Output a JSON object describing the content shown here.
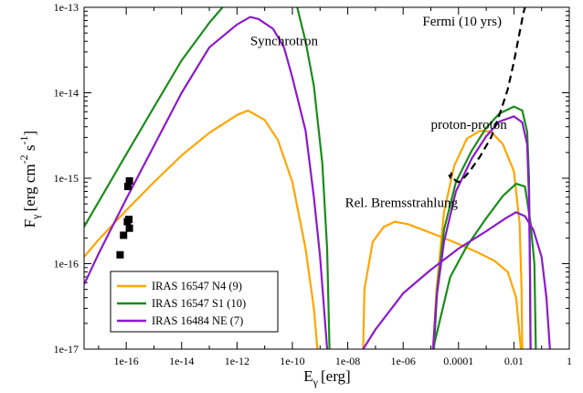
{
  "chart_data": {
    "type": "line",
    "xlabel": "E",
    "xlabel_sub": "γ",
    "xlabel_unit": "[erg]",
    "ylabel": "F",
    "ylabel_sub": "γ",
    "ylabel_unit": "[erg cm",
    "ylabel_exp1": "-2",
    "ylabel_mid": " s",
    "ylabel_exp2": "-1",
    "ylabel_close": "]",
    "x_scale": "log",
    "y_scale": "log",
    "xlim": [
      3e-18,
      1
    ],
    "ylim": [
      1e-17,
      1e-13
    ],
    "x_ticks": [
      {
        "value": 1e-16,
        "label": "1e-16"
      },
      {
        "value": 1e-14,
        "label": "1e-14"
      },
      {
        "value": 1e-12,
        "label": "1e-12"
      },
      {
        "value": 1e-10,
        "label": "1e-10"
      },
      {
        "value": 1e-08,
        "label": "1e-08"
      },
      {
        "value": 1e-06,
        "label": "1e-06"
      },
      {
        "value": 0.0001,
        "label": "0.0001"
      },
      {
        "value": 0.01,
        "label": "0.01"
      },
      {
        "value": 1,
        "label": "1"
      }
    ],
    "y_ticks": [
      {
        "value": 1e-17,
        "label": "1e-17"
      },
      {
        "value": 1e-16,
        "label": "1e-16"
      },
      {
        "value": 1e-15,
        "label": "1e-15"
      },
      {
        "value": 1e-14,
        "label": "1e-14"
      },
      {
        "value": 1e-13,
        "label": "1e-13"
      }
    ],
    "grid": false,
    "legend_position": "bottom-left",
    "colors": {
      "orange": "#FFA500",
      "green": "#1a8c1a",
      "purple": "#8c1acc",
      "black": "#000000"
    },
    "annotations": [
      {
        "text": "Synchrotron",
        "x": 3e-12,
        "y": 3.6e-14
      },
      {
        "text": "proton-proton",
        "x": 1e-05,
        "y": 3.8e-15
      },
      {
        "text": "Rel. Bremsstrahlung",
        "x": 8e-09,
        "y": 4.6e-16
      },
      {
        "text": "Fermi (10 yrs)",
        "x": 5e-06,
        "y": 6.1e-14
      }
    ],
    "series": [
      {
        "name": "IRAS 16547 N4 (9)",
        "color": "#FFA500",
        "segments": [
          [
            [
              3e-18,
              1.2e-16
            ],
            [
              1e-17,
              1.9e-16
            ],
            [
              1e-16,
              4.2e-16
            ],
            [
              1e-15,
              9e-16
            ],
            [
              1e-14,
              1.85e-15
            ],
            [
              1e-13,
              3.4e-15
            ],
            [
              1e-12,
              5.5e-15
            ],
            [
              2.5e-12,
              6.2e-15
            ],
            [
              1e-11,
              4.8e-15
            ],
            [
              3e-11,
              2.8e-15
            ],
            [
              1e-10,
              9e-16
            ],
            [
              3e-10,
              1.5e-16
            ],
            [
              6e-10,
              3e-17
            ],
            [
              8e-10,
              1e-17
            ]
          ],
          [
            [
              3.6e-08,
              1e-17
            ],
            [
              4e-08,
              5e-17
            ],
            [
              8e-08,
              1.8e-16
            ],
            [
              2e-07,
              2.7e-16
            ],
            [
              5e-07,
              3.1e-16
            ],
            [
              1.5e-06,
              2.9e-16
            ],
            [
              5e-06,
              2.5e-16
            ],
            [
              2e-05,
              2.1e-16
            ],
            [
              0.0001,
              1.7e-16
            ],
            [
              0.0005,
              1.35e-16
            ],
            [
              0.002,
              1.08e-16
            ],
            [
              0.006,
              8e-17
            ],
            [
              0.012,
              4e-17
            ],
            [
              0.018,
              1e-17
            ]
          ],
          [
            [
              1.2e-05,
              1e-17
            ],
            [
              1.6e-05,
              5e-17
            ],
            [
              3e-05,
              4e-16
            ],
            [
              7e-05,
              1.4e-15
            ],
            [
              0.0002,
              2.9e-15
            ],
            [
              0.0006,
              3.6e-15
            ],
            [
              0.0015,
              3.5e-15
            ],
            [
              0.004,
              2.5e-15
            ],
            [
              0.01,
              1.2e-15
            ],
            [
              0.016,
              3e-16
            ],
            [
              0.019,
              5e-17
            ],
            [
              0.02,
              1e-17
            ]
          ]
        ]
      },
      {
        "name": "IRAS 16547 S1 (10)",
        "color": "#1a8c1a",
        "segments": [
          [
            [
              3e-18,
              2.7e-16
            ],
            [
              1e-16,
              1.9e-15
            ],
            [
              1e-15,
              6.8e-15
            ],
            [
              1e-14,
              2.4e-14
            ],
            [
              1e-13,
              6.6e-14
            ],
            [
              3e-13,
              1e-13
            ]
          ],
          [
            [
              1.5e-10,
              1e-13
            ],
            [
              3e-10,
              4e-14
            ],
            [
              6e-10,
              1.2e-14
            ],
            [
              1.2e-09,
              1.5e-15
            ],
            [
              1.8e-09,
              1.5e-16
            ],
            [
              2.2e-09,
              1e-17
            ]
          ],
          [
            [
              1.2e-05,
              1e-17
            ],
            [
              5e-05,
              7e-17
            ],
            [
              0.0002,
              1.6e-16
            ],
            [
              0.001,
              3.4e-16
            ],
            [
              0.004,
              6.2e-16
            ],
            [
              0.012,
              8.6e-16
            ],
            [
              0.025,
              8e-16
            ],
            [
              0.04,
              3e-16
            ],
            [
              0.055,
              1e-16
            ],
            [
              0.062,
              1e-17
            ]
          ],
          [
            [
              1.3e-05,
              1e-17
            ],
            [
              1.7e-05,
              5e-17
            ],
            [
              3e-05,
              2.5e-16
            ],
            [
              8e-05,
              9e-16
            ],
            [
              0.0003,
              2.1e-15
            ],
            [
              0.001,
              3.9e-15
            ],
            [
              0.003,
              5.7e-15
            ],
            [
              0.01,
              6.9e-15
            ],
            [
              0.02,
              6.2e-15
            ],
            [
              0.03,
              3.5e-15
            ],
            [
              0.035,
              1e-15
            ],
            [
              0.038,
              1e-16
            ],
            [
              0.04,
              1e-17
            ]
          ]
        ]
      },
      {
        "name": "IRAS 16484 NE (7)",
        "color": "#8c1acc",
        "segments": [
          [
            [
              3e-18,
              5.7e-17
            ],
            [
              1e-17,
              1.3e-16
            ],
            [
              1e-16,
              5.7e-16
            ],
            [
              1e-15,
              2.4e-15
            ],
            [
              1e-14,
              1e-14
            ],
            [
              1e-13,
              3.4e-14
            ],
            [
              1e-12,
              6.3e-14
            ],
            [
              3e-12,
              7.7e-14
            ],
            [
              6e-12,
              7.3e-14
            ],
            [
              2e-11,
              5.6e-14
            ],
            [
              5e-11,
              3.4e-14
            ],
            [
              1e-10,
              1.5e-14
            ],
            [
              3e-10,
              3.6e-15
            ],
            [
              6e-10,
              6e-16
            ],
            [
              1e-09,
              1.2e-16
            ],
            [
              1.8e-09,
              1e-17
            ]
          ],
          [
            [
              3.6e-08,
              1e-17
            ],
            [
              1e-07,
              1.7e-17
            ],
            [
              1e-06,
              4.5e-17
            ],
            [
              1e-05,
              8.5e-17
            ],
            [
              0.0001,
              1.5e-16
            ],
            [
              0.001,
              2.4e-16
            ],
            [
              0.005,
              3.4e-16
            ],
            [
              0.012,
              4e-16
            ],
            [
              0.025,
              3.6e-16
            ],
            [
              0.05,
              2.5e-16
            ],
            [
              0.1,
              1.2e-16
            ],
            [
              0.15,
              4e-17
            ],
            [
              0.2,
              1e-17
            ]
          ],
          [
            [
              1.2e-05,
              1e-17
            ],
            [
              1.6e-05,
              4e-17
            ],
            [
              3e-05,
              1.8e-16
            ],
            [
              8e-05,
              7e-16
            ],
            [
              0.0003,
              1.7e-15
            ],
            [
              0.001,
              3.1e-15
            ],
            [
              0.003,
              4.6e-15
            ],
            [
              0.01,
              5.3e-15
            ],
            [
              0.02,
              4.5e-15
            ],
            [
              0.03,
              2.5e-15
            ],
            [
              0.035,
              6e-16
            ],
            [
              0.038,
              7e-17
            ],
            [
              0.04,
              1e-17
            ]
          ]
        ]
      }
    ],
    "fermi_sensitivity": {
      "name": "Fermi (10 yrs)",
      "color": "#000000",
      "points": [
        [
          4.5e-05,
          1.1e-15
        ],
        [
          5e-05,
          1.03e-15
        ],
        [
          5.5e-05,
          1.12e-15
        ],
        [
          6.5e-05,
          1e-15
        ],
        [
          8e-05,
          9.3e-16
        ],
        [
          0.0001,
          9e-16
        ],
        [
          0.00013,
          9.5e-16
        ],
        [
          0.00018,
          1.06e-15
        ],
        [
          0.0003,
          1.3e-15
        ],
        [
          0.0006,
          1.8e-15
        ],
        [
          0.0015,
          3e-15
        ],
        [
          0.003,
          5.5e-15
        ],
        [
          0.006,
          1.1e-14
        ],
        [
          0.01,
          2.3e-14
        ],
        [
          0.015,
          4.5e-14
        ],
        [
          0.022,
          8.6e-14
        ],
        [
          0.025,
          1e-13
        ]
      ]
    },
    "observed_points": {
      "name": "",
      "color": "#000000",
      "marker": "square",
      "points": [
        [
          6e-17,
          1.27e-16
        ],
        [
          8e-17,
          2.15e-16
        ],
        [
          1.1e-16,
          3.1e-16
        ],
        [
          1.25e-16,
          3.3e-16
        ],
        [
          1.3e-16,
          2.6e-16
        ],
        [
          1.15e-16,
          8e-16
        ],
        [
          1.3e-16,
          9.3e-16
        ]
      ]
    }
  }
}
